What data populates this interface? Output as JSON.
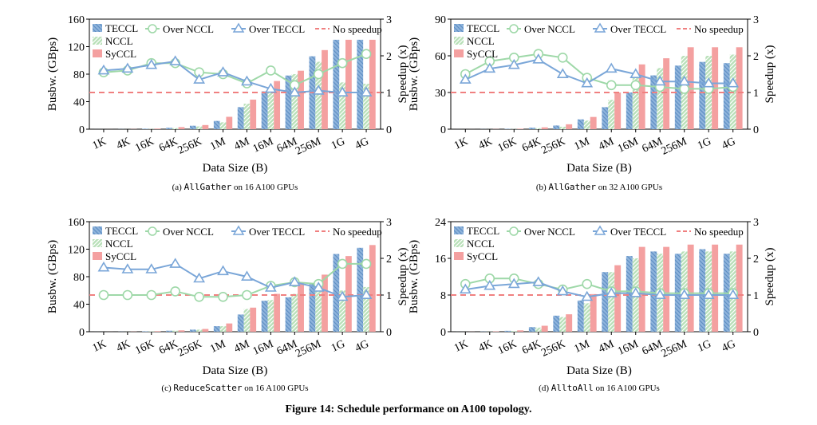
{
  "figure_caption": "Figure 14: Schedule performance on A100 topology.",
  "legend": {
    "teccl": "TECCL",
    "nccl": "NCCL",
    "syccl": "SyCCL",
    "over_nccl": "Over NCCL",
    "over_teccl": "Over TECCL",
    "no_speedup": "No speedup"
  },
  "colors": {
    "teccl": "#8fb4dc",
    "nccl": "#b8e0b8",
    "syccl": "#f4a0a0",
    "over_nccl": "#9ed8a8",
    "over_teccl": "#7aa6d8",
    "no_speedup": "#f08080"
  },
  "chart_data": [
    {
      "type": "bar",
      "caption_prefix": "(a) ",
      "caption_code": "AllGather",
      "caption_suffix": " on 16 A100 GPUs",
      "xlabel": "Data Size (B)",
      "ylabel": "Busbw. (GBps)",
      "y2label": "Speedup (x)",
      "categories": [
        "1K",
        "4K",
        "16K",
        "64K",
        "256K",
        "1M",
        "4M",
        "16M",
        "64M",
        "256M",
        "1G",
        "4G"
      ],
      "ylim": [
        0,
        160
      ],
      "yticks": [
        0,
        40,
        80,
        120,
        160
      ],
      "y2lim": [
        0,
        3
      ],
      "y2ticks": [
        0,
        1,
        2,
        3
      ],
      "series": [
        {
          "name": "TECCL",
          "values": [
            0.04,
            0.2,
            0.7,
            2,
            5,
            12,
            32,
            55,
            78,
            106,
            130,
            130
          ]
        },
        {
          "name": "NCCL",
          "values": [
            0.03,
            0.1,
            0.4,
            1.5,
            4,
            10,
            37,
            58,
            80,
            98,
            68,
            66
          ]
        },
        {
          "name": "SyCCL",
          "values": [
            0.05,
            0.25,
            0.9,
            3,
            6,
            18,
            43,
            70,
            85,
            115,
            130,
            130
          ]
        }
      ],
      "lines": [
        {
          "name": "Over NCCL",
          "values": [
            1.55,
            1.6,
            1.8,
            1.8,
            1.55,
            1.5,
            1.25,
            1.6,
            1.2,
            1.5,
            1.8,
            2.05
          ]
        },
        {
          "name": "Over TECCL",
          "values": [
            1.6,
            1.65,
            1.75,
            1.85,
            1.35,
            1.55,
            1.3,
            1.1,
            1.0,
            1.05,
            1.0,
            1.0
          ]
        }
      ],
      "baseline": 1
    },
    {
      "type": "bar",
      "caption_prefix": "(b) ",
      "caption_code": "AllGather",
      "caption_suffix": " on 32 A100 GPUs",
      "xlabel": "Data Size (B)",
      "ylabel": "Busbw. (GBps)",
      "y2label": "Speedup (x)",
      "categories": [
        "1K",
        "4K",
        "16K",
        "64K",
        "256K",
        "1M",
        "4M",
        "16M",
        "64M",
        "256M",
        "1G",
        "4G"
      ],
      "ylim": [
        0,
        90
      ],
      "yticks": [
        0,
        30,
        60,
        90
      ],
      "y2lim": [
        0,
        3
      ],
      "y2ticks": [
        0,
        1,
        2,
        3
      ],
      "series": [
        {
          "name": "TECCL",
          "values": [
            0.02,
            0.1,
            0.3,
            1.2,
            3,
            8,
            18,
            30,
            44,
            52,
            55,
            54
          ]
        },
        {
          "name": "NCCL",
          "values": [
            0.01,
            0.05,
            0.2,
            0.8,
            2,
            7,
            24,
            42,
            50,
            60,
            60,
            61
          ]
        },
        {
          "name": "SyCCL",
          "values": [
            0.03,
            0.15,
            0.4,
            1.5,
            4,
            10,
            30,
            53,
            58,
            67,
            67,
            67
          ]
        }
      ],
      "lines": [
        {
          "name": "Over NCCL",
          "values": [
            1.5,
            1.85,
            1.95,
            2.05,
            1.95,
            1.4,
            1.2,
            1.2,
            1.15,
            1.1,
            1.1,
            1.15
          ]
        },
        {
          "name": "Over TECCL",
          "values": [
            1.35,
            1.65,
            1.75,
            1.9,
            1.5,
            1.25,
            1.65,
            1.5,
            1.3,
            1.3,
            1.25,
            1.25
          ]
        }
      ],
      "baseline": 1
    },
    {
      "type": "bar",
      "caption_prefix": "(c) ",
      "caption_code": "ReduceScatter",
      "caption_suffix": " on 16 A100 GPUs",
      "xlabel": "Data Size (B)",
      "ylabel": "Busbw. (GBps)",
      "y2label": "Speedup (x)",
      "categories": [
        "1K",
        "4K",
        "16K",
        "64K",
        "256K",
        "1M",
        "4M",
        "16M",
        "64M",
        "256M",
        "1G",
        "4G"
      ],
      "ylim": [
        0,
        160
      ],
      "yticks": [
        0,
        40,
        80,
        120,
        160
      ],
      "y2lim": [
        0,
        3
      ],
      "y2ticks": [
        0,
        1,
        2,
        3
      ],
      "series": [
        {
          "name": "TECCL",
          "values": [
            0.04,
            0.2,
            0.6,
            1.5,
            3,
            8,
            25,
            45,
            50,
            70,
            113,
            122
          ]
        },
        {
          "name": "NCCL",
          "values": [
            0.03,
            0.15,
            0.5,
            1.5,
            3,
            8,
            33,
            46,
            55,
            65,
            60,
            65
          ]
        },
        {
          "name": "SyCCL",
          "values": [
            0.05,
            0.25,
            0.8,
            2,
            4,
            12,
            35,
            55,
            72,
            83,
            110,
            126
          ]
        }
      ],
      "lines": [
        {
          "name": "Over NCCL",
          "values": [
            1.0,
            1.0,
            1.0,
            1.1,
            0.95,
            0.95,
            1.0,
            1.25,
            1.35,
            1.3,
            1.85,
            1.85
          ]
        },
        {
          "name": "Over TECCL",
          "values": [
            1.75,
            1.7,
            1.7,
            1.85,
            1.45,
            1.65,
            1.5,
            1.2,
            1.35,
            1.2,
            0.95,
            1.0
          ]
        }
      ],
      "baseline": 1
    },
    {
      "type": "bar",
      "caption_prefix": "(d) ",
      "caption_code": "AlltoAll",
      "caption_suffix": " on 16 A100 GPUs",
      "xlabel": "Data Size (B)",
      "ylabel": "Busbw. (GBps)",
      "y2label": "Speedup (x)",
      "categories": [
        "1K",
        "4K",
        "16K",
        "64K",
        "256K",
        "1M",
        "4M",
        "16M",
        "64M",
        "256M",
        "1G",
        "4G"
      ],
      "ylim": [
        0,
        24
      ],
      "yticks": [
        0,
        8,
        16,
        24
      ],
      "y2lim": [
        0,
        3
      ],
      "y2ticks": [
        0,
        1,
        2,
        3
      ],
      "series": [
        {
          "name": "TECCL",
          "values": [
            0.01,
            0.05,
            0.2,
            1,
            3.5,
            6.8,
            13,
            16.5,
            17.5,
            17,
            18,
            17
          ]
        },
        {
          "name": "NCCL",
          "values": [
            0.01,
            0.04,
            0.15,
            0.9,
            3.2,
            6.2,
            13,
            16,
            17,
            17.5,
            17.5,
            17.5
          ]
        },
        {
          "name": "SyCCL",
          "values": [
            0.02,
            0.08,
            0.3,
            1.3,
            3.8,
            8.2,
            14.5,
            18.5,
            18.5,
            19,
            19,
            19
          ]
        }
      ],
      "lines": [
        {
          "name": "Over NCCL",
          "values": [
            1.3,
            1.45,
            1.45,
            1.3,
            1.15,
            1.3,
            1.1,
            1.1,
            1.05,
            1.05,
            1.05,
            1.05
          ]
        },
        {
          "name": "Over TECCL",
          "values": [
            1.15,
            1.25,
            1.3,
            1.35,
            1.1,
            0.95,
            1.05,
            1.05,
            1.0,
            1.0,
            1.0,
            1.0
          ]
        }
      ],
      "baseline": 1
    }
  ]
}
